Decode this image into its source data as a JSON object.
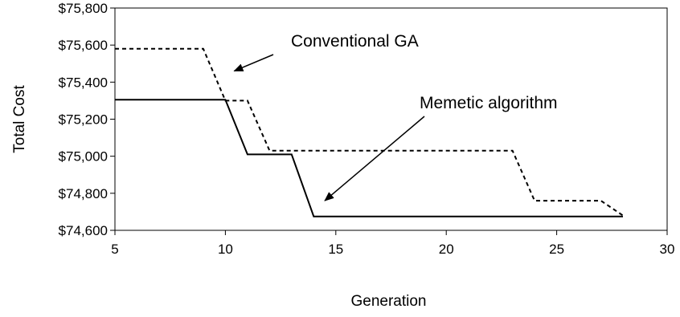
{
  "chart_data": {
    "type": "line",
    "xlabel": "Generation",
    "ylabel": "Total Cost",
    "xlim": [
      5,
      30
    ],
    "ylim": [
      74600,
      75800
    ],
    "x_ticks": [
      5,
      10,
      15,
      20,
      25,
      30
    ],
    "x_tick_labels": [
      "5",
      "10",
      "15",
      "20",
      "25",
      "30"
    ],
    "y_ticks": [
      74600,
      74800,
      75000,
      75200,
      75400,
      75600,
      75800
    ],
    "y_tick_labels": [
      "$74,600",
      "$74,800",
      "$75,000",
      "$75,200",
      "$75,400",
      "$75,600",
      "$75,800"
    ],
    "grid": false,
    "legend": "none",
    "series": [
      {
        "style": "dashed",
        "color": "#000000",
        "x": [
          5,
          9,
          10,
          11,
          12,
          13,
          23,
          24,
          27,
          28
        ],
        "y": [
          75580,
          75580,
          75300,
          75300,
          75030,
          75030,
          75030,
          74760,
          74760,
          74680
        ]
      },
      {
        "style": "solid",
        "color": "#000000",
        "x": [
          5,
          10,
          11,
          13,
          14,
          28
        ],
        "y": [
          75305,
          75305,
          75010,
          75010,
          74675,
          74675
        ]
      }
    ],
    "annotations": [
      {
        "text": "Conventional GA",
        "target_series": 0,
        "target_point": [
          10.4,
          75460
        ]
      },
      {
        "text": "Memetic algorithm",
        "target_series": 1,
        "target_point": [
          14.5,
          74760
        ]
      }
    ]
  }
}
